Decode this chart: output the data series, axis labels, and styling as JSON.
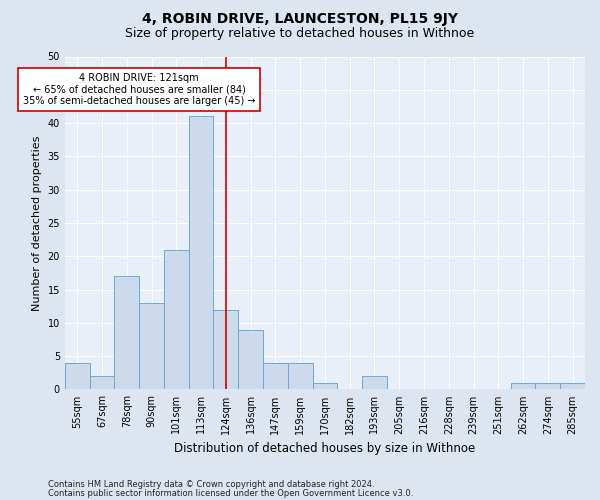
{
  "title": "4, ROBIN DRIVE, LAUNCESTON, PL15 9JY",
  "subtitle": "Size of property relative to detached houses in Withnoe",
  "xlabel": "Distribution of detached houses by size in Withnoe",
  "ylabel": "Number of detached properties",
  "footer1": "Contains HM Land Registry data © Crown copyright and database right 2024.",
  "footer2": "Contains public sector information licensed under the Open Government Licence v3.0.",
  "bin_labels": [
    "55sqm",
    "67sqm",
    "78sqm",
    "90sqm",
    "101sqm",
    "113sqm",
    "124sqm",
    "136sqm",
    "147sqm",
    "159sqm",
    "170sqm",
    "182sqm",
    "193sqm",
    "205sqm",
    "216sqm",
    "228sqm",
    "239sqm",
    "251sqm",
    "262sqm",
    "274sqm",
    "285sqm"
  ],
  "values": [
    4,
    2,
    17,
    13,
    21,
    41,
    12,
    9,
    4,
    4,
    1,
    0,
    2,
    0,
    0,
    0,
    0,
    0,
    1,
    1,
    1
  ],
  "bar_color": "#ccdaeb",
  "bar_edge_color": "#6aaad4",
  "highlight_bin_index": 6,
  "highlight_color": "#cc0000",
  "annotation_text": "4 ROBIN DRIVE: 121sqm\n← 65% of detached houses are smaller (84)\n35% of semi-detached houses are larger (45) →",
  "annotation_box_color": "#ffffff",
  "annotation_box_edge": "#cc0000",
  "ylim": [
    0,
    50
  ],
  "yticks": [
    0,
    5,
    10,
    15,
    20,
    25,
    30,
    35,
    40,
    45,
    50
  ],
  "bg_color": "#dde6f0",
  "plot_bg_color": "#e8eff8",
  "title_fontsize": 10,
  "subtitle_fontsize": 9,
  "ylabel_fontsize": 8,
  "xlabel_fontsize": 8.5,
  "tick_fontsize": 7,
  "annotation_fontsize": 7,
  "footer_fontsize": 6
}
